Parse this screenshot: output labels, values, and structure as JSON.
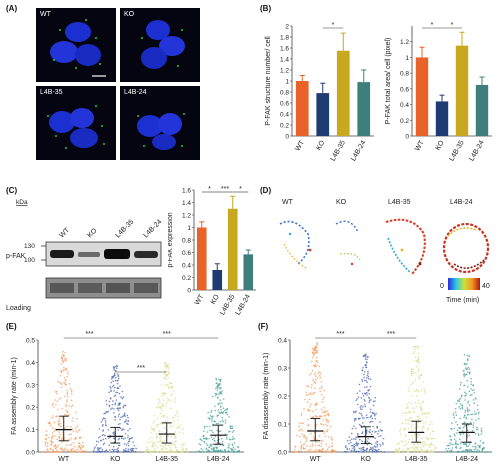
{
  "panels": {
    "A": {
      "label": "(A)",
      "images": [
        {
          "caption": "WT"
        },
        {
          "caption": "KO"
        },
        {
          "caption": "L4B-35"
        },
        {
          "caption": "L4B-24"
        }
      ]
    },
    "B": {
      "label": "(B)"
    },
    "C": {
      "label": "(C)",
      "blot": {
        "kda_label": "kDa",
        "lanes": [
          "WT",
          "KO",
          "L4B-35",
          "L4B-24"
        ],
        "markers": [
          "130",
          "100"
        ],
        "rows": [
          "p-FAK",
          "Loading"
        ]
      }
    },
    "D": {
      "label": "(D)",
      "cells": [
        "WT",
        "KO",
        "L4B-35",
        "L4B-24"
      ],
      "colorbar": {
        "min": "0",
        "max": "40",
        "label": "Time (min)"
      }
    },
    "E": {
      "label": "(E)"
    },
    "F": {
      "label": "(F)"
    }
  },
  "chart_data": [
    {
      "id": "B-left",
      "type": "bar",
      "categories": [
        "WT",
        "KO",
        "L4B-35",
        "L4B-24"
      ],
      "values": [
        1.0,
        0.78,
        1.55,
        0.98
      ],
      "errors": [
        0.1,
        0.18,
        0.32,
        0.22
      ],
      "colors": [
        "#e8622a",
        "#1f3b73",
        "#c8a81e",
        "#3e7f7d"
      ],
      "ylabel": "P-FAK structure number/ cell",
      "ylim": [
        0,
        2
      ],
      "yticks": [
        "0",
        "0.2",
        "0.4",
        "0.6",
        "0.8",
        "1",
        "1.2",
        "1.4",
        "1.6",
        "1.8",
        "2"
      ],
      "significance": [
        {
          "from": 1,
          "to": 2,
          "label": "*"
        }
      ]
    },
    {
      "id": "B-right",
      "type": "bar",
      "categories": [
        "WT",
        "KO",
        "L4B-35",
        "L4B-24"
      ],
      "values": [
        1.0,
        0.44,
        1.15,
        0.65
      ],
      "errors": [
        0.13,
        0.08,
        0.17,
        0.1
      ],
      "colors": [
        "#e8622a",
        "#1f3b73",
        "#c8a81e",
        "#3e7f7d"
      ],
      "ylabel": "P-FAK total area/ cell (pixel)",
      "ylim": [
        0,
        1.4
      ],
      "yticks": [
        "0",
        "0.2",
        "0.4",
        "0.6",
        "0.8",
        "1",
        "1.2"
      ],
      "significance": [
        {
          "from": 0,
          "to": 1,
          "label": "*"
        },
        {
          "from": 1,
          "to": 2,
          "label": "*"
        }
      ]
    },
    {
      "id": "C-right",
      "type": "bar",
      "categories": [
        "WT",
        "KO",
        "L4B-35",
        "L4B-24"
      ],
      "values": [
        1.0,
        0.32,
        1.3,
        0.57
      ],
      "errors": [
        0.09,
        0.1,
        0.2,
        0.07
      ],
      "colors": [
        "#e8622a",
        "#1f3b73",
        "#c8a81e",
        "#3e7f7d"
      ],
      "ylabel": "p-FAK expression",
      "ylim": [
        0,
        1.6
      ],
      "yticks": [
        "0",
        "0.2",
        "0.4",
        "0.6",
        "0.8",
        "1",
        "1.2",
        "1.4",
        "1.6"
      ],
      "significance": [
        {
          "from": 0,
          "to": 1,
          "label": "*"
        },
        {
          "from": 1,
          "to": 2,
          "label": "***"
        },
        {
          "from": 2,
          "to": 3,
          "label": "*"
        }
      ]
    },
    {
      "id": "E",
      "type": "scatter",
      "categories": [
        "WT",
        "KO",
        "L4B-35",
        "L4B-24"
      ],
      "medians": [
        0.1,
        0.07,
        0.08,
        0.075
      ],
      "spread_low": [
        0.05,
        0.04,
        0.04,
        0.035
      ],
      "spread_high": [
        0.16,
        0.11,
        0.13,
        0.12
      ],
      "maxima": [
        0.45,
        0.4,
        0.4,
        0.33
      ],
      "colors": [
        "#f59a5b",
        "#4a67b0",
        "#d8dc8a",
        "#4aa09a"
      ],
      "ylabel": "FA assembly rate (min-1)",
      "ylim": [
        0,
        0.5
      ],
      "yticks": [
        "0.0",
        "0.1",
        "0.2",
        "0.3",
        "0.4",
        "0.5"
      ],
      "significance": [
        {
          "from": 0,
          "to": 1,
          "label": "***"
        },
        {
          "from": 1,
          "to": 3,
          "label": "***"
        },
        {
          "from": 1,
          "to": 2,
          "label": "***"
        }
      ]
    },
    {
      "id": "F",
      "type": "scatter",
      "categories": [
        "WT",
        "KO",
        "L4B-35",
        "L4B-24"
      ],
      "medians": [
        0.075,
        0.055,
        0.07,
        0.07
      ],
      "spread_low": [
        0.04,
        0.03,
        0.035,
        0.035
      ],
      "spread_high": [
        0.12,
        0.09,
        0.11,
        0.1
      ],
      "maxima": [
        0.39,
        0.35,
        0.38,
        0.35
      ],
      "colors": [
        "#f59a5b",
        "#4a67b0",
        "#d8dc8a",
        "#4aa09a"
      ],
      "ylabel": "FA disassembly rate (min-1)",
      "ylim": [
        0,
        0.4
      ],
      "yticks": [
        "0.0",
        "0.1",
        "0.2",
        "0.3",
        "0.4"
      ],
      "significance": [
        {
          "from": 0,
          "to": 1,
          "label": "***"
        },
        {
          "from": 1,
          "to": 2,
          "label": "***"
        }
      ]
    }
  ]
}
